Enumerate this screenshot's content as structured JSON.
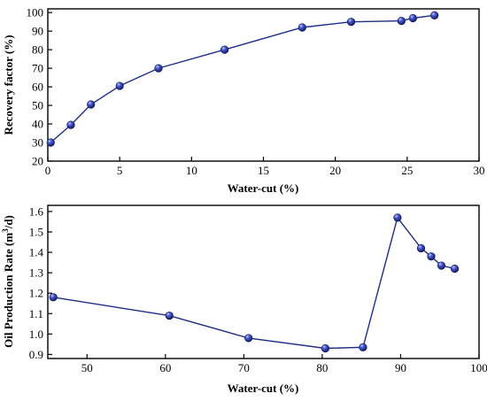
{
  "chart_data": [
    {
      "type": "line",
      "xlabel": "Water-cut (%)",
      "ylabel": "Recovery factor (%)",
      "xlim": [
        0,
        30
      ],
      "ylim": [
        20,
        102
      ],
      "xticks": [
        0,
        5,
        10,
        15,
        20,
        25,
        30
      ],
      "yticks": [
        20,
        30,
        40,
        50,
        60,
        70,
        80,
        90,
        100
      ],
      "grid": false,
      "series": [
        {
          "x": [
            0.2,
            1.6,
            3.0,
            5.0,
            7.7,
            12.3,
            17.7,
            21.1,
            24.6,
            25.4,
            26.9
          ],
          "y": [
            30,
            39.5,
            50.5,
            60.5,
            70,
            80,
            92,
            95,
            95.5,
            97,
            98.5
          ]
        }
      ],
      "color": "#1f2d8a"
    },
    {
      "type": "line",
      "xlabel": "Water-cut (%)",
      "ylabel_main": "Oil Production Rate (m",
      "ylabel_sup": "3",
      "ylabel_end": "/d)",
      "xlim": [
        45,
        100
      ],
      "ylim": [
        0.88,
        1.63
      ],
      "xticks": [
        50,
        60,
        70,
        80,
        90,
        100
      ],
      "yticks": [
        "0.9",
        "1.0",
        "1.1",
        "1.2",
        "1.3",
        "1.4",
        "1.5",
        "1.6"
      ],
      "grid": false,
      "series": [
        {
          "x": [
            45.7,
            60.5,
            70.6,
            80.4,
            85.2,
            89.6,
            92.6,
            93.9,
            95.2,
            96.9
          ],
          "y": [
            1.18,
            1.09,
            0.98,
            0.93,
            0.935,
            1.57,
            1.42,
            1.38,
            1.335,
            1.32
          ]
        }
      ],
      "color": "#1f2d8a"
    }
  ]
}
